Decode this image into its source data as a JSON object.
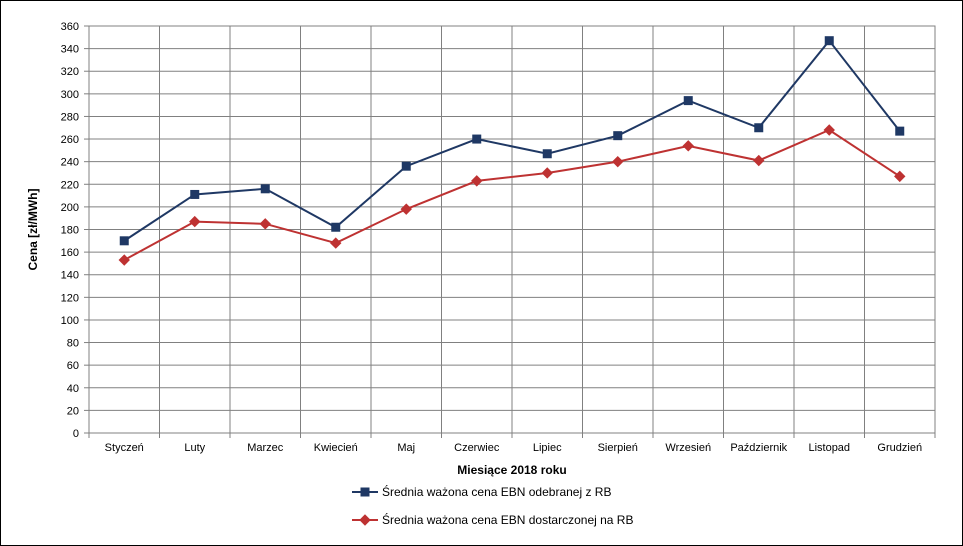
{
  "chart_data": {
    "type": "line",
    "xlabel": "Miesiące 2018  roku",
    "ylabel": "Cena [zł/MWh]",
    "ylim": [
      0,
      360
    ],
    "y_ticks": [
      "0",
      "20",
      "40",
      "60",
      "80",
      "100",
      "120",
      "140",
      "160",
      "180",
      "200",
      "220",
      "240",
      "260",
      "280",
      "300",
      "320",
      "340",
      "360"
    ],
    "categories": [
      "Styczeń",
      "Luty",
      "Marzec",
      "Kwiecień",
      "Maj",
      "Czerwiec",
      "Lipiec",
      "Sierpień",
      "Wrzesień",
      "Październik",
      "Listopad",
      "Grudzień"
    ],
    "grid": true,
    "legend_position": "bottom",
    "series": [
      {
        "name": "Średnia ważona cena EBN odebranej z RB",
        "color": "#1f3864",
        "marker": "square",
        "values": [
          170,
          211,
          216,
          182,
          236,
          260,
          247,
          263,
          294,
          270,
          347,
          267
        ]
      },
      {
        "name": "Średnia ważona cena EBN dostarczonej na RB",
        "color": "#be3232",
        "marker": "diamond",
        "values": [
          153,
          187,
          185,
          168,
          198,
          223,
          230,
          240,
          254,
          241,
          268,
          227
        ]
      }
    ]
  }
}
